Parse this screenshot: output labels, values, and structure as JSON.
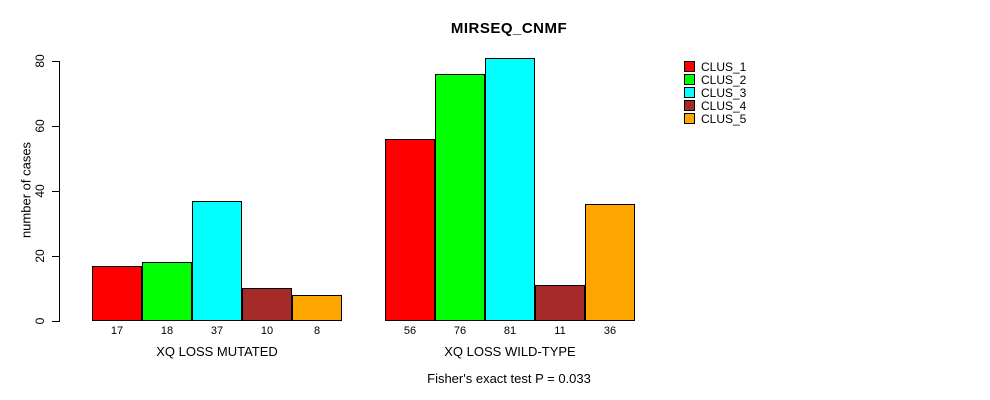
{
  "chart_data": {
    "type": "bar",
    "title": "MIRSEQ_CNMF",
    "ylabel": "number of cases",
    "xlabel": "",
    "ylim": [
      0,
      80
    ],
    "yticks": [
      0,
      20,
      40,
      60,
      80
    ],
    "grid": false,
    "legend_position": "right-outside",
    "categories": [
      "XQ LOSS MUTATED",
      "XQ LOSS WILD-TYPE"
    ],
    "series": [
      {
        "name": "CLUS_1",
        "color": "#ff0000",
        "values": [
          17,
          56
        ]
      },
      {
        "name": "CLUS_2",
        "color": "#00ff00",
        "values": [
          18,
          76
        ]
      },
      {
        "name": "CLUS_3",
        "color": "#00ffff",
        "values": [
          37,
          81
        ]
      },
      {
        "name": "CLUS_4",
        "color": "#a52a2a",
        "values": [
          10,
          11
        ]
      },
      {
        "name": "CLUS_5",
        "color": "#ffa500",
        "values": [
          8,
          36
        ]
      }
    ],
    "bar_value_labels": {
      "XQ LOSS MUTATED": [
        17,
        18,
        37,
        10,
        8
      ],
      "XQ LOSS WILD-TYPE": [
        56,
        76,
        81,
        11,
        36
      ]
    },
    "annotation": "Fisher's exact test P = 0.033"
  }
}
